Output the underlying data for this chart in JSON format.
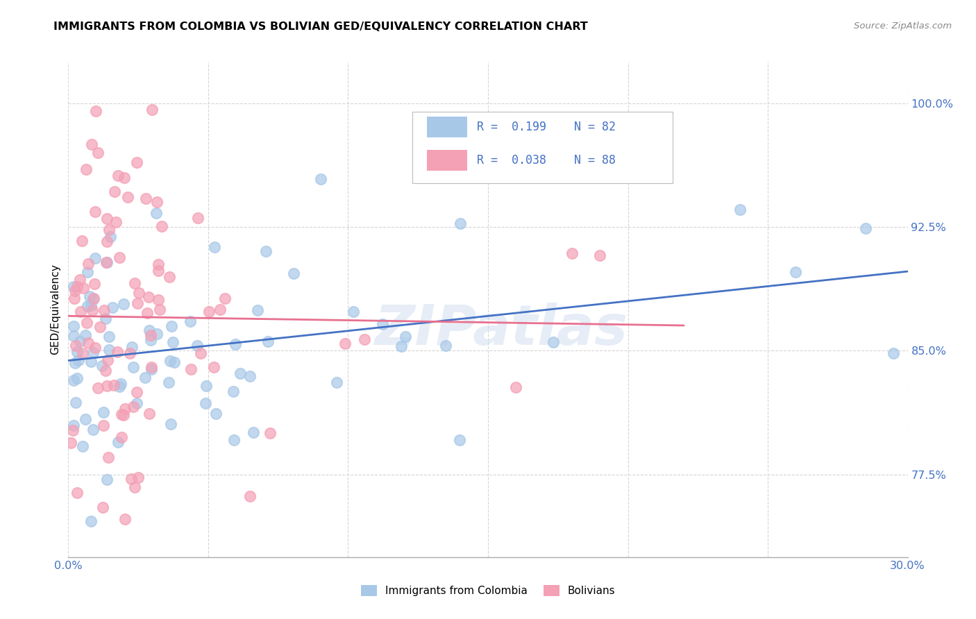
{
  "title": "IMMIGRANTS FROM COLOMBIA VS BOLIVIAN GED/EQUIVALENCY CORRELATION CHART",
  "source": "Source: ZipAtlas.com",
  "ylabel": "GED/Equivalency",
  "xlim": [
    0.0,
    0.3
  ],
  "ylim": [
    0.725,
    1.025
  ],
  "yticks": [
    0.775,
    0.85,
    0.925,
    1.0
  ],
  "ytick_labels": [
    "77.5%",
    "85.0%",
    "92.5%",
    "100.0%"
  ],
  "xticks": [
    0.0,
    0.05,
    0.1,
    0.15,
    0.2,
    0.25,
    0.3
  ],
  "xtick_labels": [
    "0.0%",
    "",
    "",
    "",
    "",
    "",
    "30.0%"
  ],
  "colombia_color": "#a8c8e8",
  "bolivia_color": "#f4a0b5",
  "colombia_line_color": "#4472c4",
  "bolivia_line_color": "#e87090",
  "R_colombia": 0.199,
  "N_colombia": 82,
  "R_bolivia": 0.038,
  "N_bolivia": 88,
  "watermark": "ZIPatlas"
}
